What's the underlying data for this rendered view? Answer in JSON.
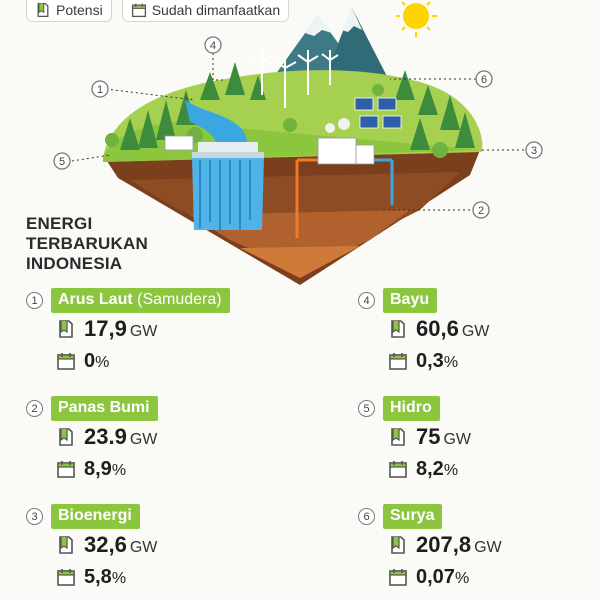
{
  "legend": {
    "potensi": "Potensi",
    "dimanfaatkan": "Sudah dimanfaatkan"
  },
  "title": [
    "ENERGI",
    "TERBARUKAN",
    "INDONESIA"
  ],
  "callouts": [
    "1",
    "2",
    "3",
    "4",
    "5",
    "6"
  ],
  "entries": [
    {
      "num": "1",
      "name": "Arus Laut",
      "sub": "(Samudera)",
      "potential": "17,9",
      "unit": "GW",
      "utilized": "0",
      "pct_sign": "%"
    },
    {
      "num": "2",
      "name": "Panas Bumi",
      "sub": "",
      "potential": "23.9",
      "unit": "GW",
      "utilized": "8,9",
      "pct_sign": "%"
    },
    {
      "num": "3",
      "name": "Bioenergi",
      "sub": "",
      "potential": "32,6",
      "unit": "GW",
      "utilized": "5,8",
      "pct_sign": "%"
    },
    {
      "num": "4",
      "name": "Bayu",
      "sub": "",
      "potential": "60,6",
      "unit": "GW",
      "utilized": "0,3",
      "pct_sign": "%"
    },
    {
      "num": "5",
      "name": "Hidro",
      "sub": "",
      "potential": "75",
      "unit": "GW",
      "utilized": "8,2",
      "pct_sign": "%"
    },
    {
      "num": "6",
      "name": "Surya",
      "sub": "",
      "potential": "207,8",
      "unit": "GW",
      "utilized": "0,07",
      "pct_sign": "%"
    }
  ],
  "colors": {
    "accent": "#8cc63f",
    "text": "#1e1e1e",
    "sun": "#ffd200"
  },
  "icons": {
    "potential": "bookmark-icon",
    "utilized": "calendar-icon"
  }
}
